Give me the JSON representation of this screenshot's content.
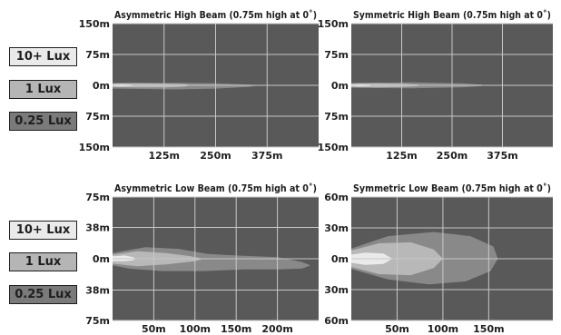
{
  "legend": [
    {
      "label": "10+ Lux",
      "color": "#eaeaea"
    },
    {
      "label": "1 Lux",
      "color": "#b5b5b5"
    },
    {
      "label": "0.25 Lux",
      "color": "#7a7a7a"
    }
  ],
  "colors": {
    "plot_bg": "#595959",
    "grid": "#c8c8c8",
    "text": "#1e1e1e",
    "zone_10lux": "#eaeaea",
    "zone_1lux": "#b8b8b8",
    "zone_025lux": "#898989"
  },
  "chart_data": [
    {
      "type": "area",
      "title": "Asymmetric High Beam (0.75m high at 0˚)",
      "xlim": [
        0,
        500
      ],
      "ylim": [
        -150,
        150
      ],
      "x_ticks": [
        {
          "value": 125,
          "label": "125m"
        },
        {
          "value": 250,
          "label": "250m"
        },
        {
          "value": 375,
          "label": "375m"
        }
      ],
      "y_ticks": [
        {
          "value": 150,
          "label": "150m"
        },
        {
          "value": 75,
          "label": "75m"
        },
        {
          "value": 0,
          "label": "0m"
        },
        {
          "value": -75,
          "label": "75m"
        },
        {
          "value": -150,
          "label": "150m"
        }
      ],
      "grid": true,
      "series": [
        {
          "name": "0.25 Lux",
          "outline": [
            [
              0,
              6
            ],
            [
              150,
              6
            ],
            [
              250,
              5
            ],
            [
              330,
              2
            ],
            [
              355,
              0
            ],
            [
              330,
              -4
            ],
            [
              250,
              -8
            ],
            [
              150,
              -10
            ],
            [
              0,
              -8
            ]
          ]
        },
        {
          "name": "1 Lux",
          "outline": [
            [
              0,
              4
            ],
            [
              60,
              5
            ],
            [
              130,
              4
            ],
            [
              175,
              3
            ],
            [
              192,
              0
            ],
            [
              175,
              -3
            ],
            [
              130,
              -5
            ],
            [
              60,
              -5
            ],
            [
              0,
              -4
            ]
          ]
        },
        {
          "name": "10+ Lux",
          "outline": [
            [
              0,
              2
            ],
            [
              20,
              3
            ],
            [
              45,
              2
            ],
            [
              55,
              0
            ],
            [
              45,
              -2
            ],
            [
              20,
              -3
            ],
            [
              0,
              -2
            ]
          ]
        }
      ]
    },
    {
      "type": "area",
      "title": "Symmetric High Beam (0.75m high at 0˚)",
      "xlim": [
        0,
        500
      ],
      "ylim": [
        -150,
        150
      ],
      "x_ticks": [
        {
          "value": 125,
          "label": "125m"
        },
        {
          "value": 250,
          "label": "250m"
        },
        {
          "value": 375,
          "label": "375m"
        }
      ],
      "y_ticks": [
        {
          "value": 150,
          "label": "150m"
        },
        {
          "value": 75,
          "label": "75m"
        },
        {
          "value": 0,
          "label": "0m"
        },
        {
          "value": -75,
          "label": "75m"
        },
        {
          "value": -150,
          "label": "150m"
        }
      ],
      "grid": true,
      "series": [
        {
          "name": "0.25 Lux",
          "outline": [
            [
              0,
              6
            ],
            [
              150,
              7
            ],
            [
              270,
              5
            ],
            [
              320,
              2
            ],
            [
              335,
              0
            ],
            [
              320,
              -2
            ],
            [
              270,
              -5
            ],
            [
              150,
              -7
            ],
            [
              0,
              -6
            ]
          ]
        },
        {
          "name": "1 Lux",
          "outline": [
            [
              0,
              4
            ],
            [
              60,
              5
            ],
            [
              130,
              4
            ],
            [
              165,
              2
            ],
            [
              175,
              0
            ],
            [
              165,
              -2
            ],
            [
              130,
              -4
            ],
            [
              60,
              -5
            ],
            [
              0,
              -4
            ]
          ]
        },
        {
          "name": "10+ Lux",
          "outline": [
            [
              0,
              2
            ],
            [
              20,
              3
            ],
            [
              45,
              2
            ],
            [
              55,
              0
            ],
            [
              45,
              -2
            ],
            [
              20,
              -3
            ],
            [
              0,
              -2
            ]
          ]
        }
      ]
    },
    {
      "type": "area",
      "title": "Asymmetric Low Beam (0.75m high at 0˚)",
      "xlim": [
        0,
        250
      ],
      "ylim": [
        -75,
        75
      ],
      "x_ticks": [
        {
          "value": 50,
          "label": "50m"
        },
        {
          "value": 100,
          "label": "100m"
        },
        {
          "value": 150,
          "label": "150m"
        },
        {
          "value": 200,
          "label": "200m"
        }
      ],
      "y_ticks": [
        {
          "value": 75,
          "label": "75m"
        },
        {
          "value": 38,
          "label": "38m"
        },
        {
          "value": 0,
          "label": "0m"
        },
        {
          "value": -38,
          "label": "38m"
        },
        {
          "value": -75,
          "label": "75m"
        }
      ],
      "grid": true,
      "series": [
        {
          "name": "0.25 Lux",
          "outline": [
            [
              0,
              7
            ],
            [
              40,
              14
            ],
            [
              80,
              12
            ],
            [
              115,
              6
            ],
            [
              150,
              4
            ],
            [
              200,
              2
            ],
            [
              230,
              -4
            ],
            [
              240,
              -8
            ],
            [
              230,
              -12
            ],
            [
              200,
              -13
            ],
            [
              160,
              -13
            ],
            [
              110,
              -15
            ],
            [
              60,
              -15
            ],
            [
              20,
              -12
            ],
            [
              0,
              -8
            ]
          ]
        },
        {
          "name": "1 Lux",
          "outline": [
            [
              0,
              5
            ],
            [
              30,
              9
            ],
            [
              65,
              7
            ],
            [
              95,
              3
            ],
            [
              110,
              0
            ],
            [
              100,
              -3
            ],
            [
              65,
              -7
            ],
            [
              30,
              -9
            ],
            [
              0,
              -6
            ]
          ]
        },
        {
          "name": "10+ Lux",
          "outline": [
            [
              0,
              3
            ],
            [
              15,
              4
            ],
            [
              25,
              2
            ],
            [
              28,
              0
            ],
            [
              25,
              -2
            ],
            [
              15,
              -3
            ],
            [
              0,
              -3
            ]
          ]
        }
      ]
    },
    {
      "type": "area",
      "title": "Symmetric Low Beam (0.75m high at 0˚)",
      "xlim": [
        0,
        220
      ],
      "ylim": [
        -60,
        60
      ],
      "x_ticks": [
        {
          "value": 50,
          "label": "50m"
        },
        {
          "value": 100,
          "label": "100m"
        },
        {
          "value": 150,
          "label": "150m"
        }
      ],
      "y_ticks": [
        {
          "value": 60,
          "label": "60m"
        },
        {
          "value": 30,
          "label": "30m"
        },
        {
          "value": 0,
          "label": "0m"
        },
        {
          "value": -30,
          "label": "30m"
        },
        {
          "value": -60,
          "label": "60m"
        }
      ],
      "grid": true,
      "series": [
        {
          "name": "0.25 Lux",
          "outline": [
            [
              0,
              10
            ],
            [
              40,
              22
            ],
            [
              90,
              26
            ],
            [
              130,
              22
            ],
            [
              155,
              12
            ],
            [
              160,
              0
            ],
            [
              152,
              -12
            ],
            [
              125,
              -22
            ],
            [
              85,
              -25
            ],
            [
              40,
              -20
            ],
            [
              0,
              -10
            ]
          ]
        },
        {
          "name": "1 Lux",
          "outline": [
            [
              0,
              8
            ],
            [
              30,
              15
            ],
            [
              65,
              16
            ],
            [
              90,
              9
            ],
            [
              100,
              0
            ],
            [
              90,
              -9
            ],
            [
              65,
              -16
            ],
            [
              30,
              -15
            ],
            [
              0,
              -8
            ]
          ]
        },
        {
          "name": "10+ Lux",
          "outline": [
            [
              0,
              4
            ],
            [
              15,
              6
            ],
            [
              35,
              5
            ],
            [
              45,
              0
            ],
            [
              35,
              -5
            ],
            [
              15,
              -6
            ],
            [
              0,
              -4
            ]
          ]
        }
      ]
    }
  ]
}
